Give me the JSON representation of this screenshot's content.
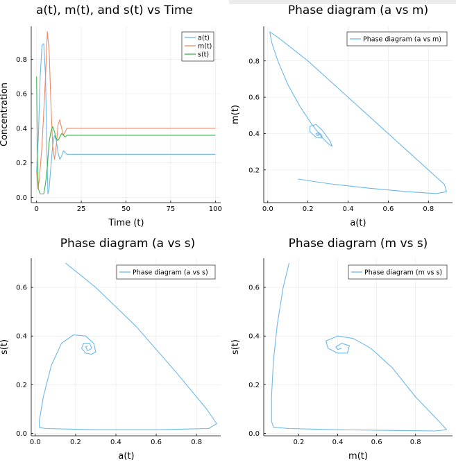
{
  "colors": {
    "a": "#6bb8ea",
    "m": "#f08a64",
    "s": "#3ab54a"
  },
  "chart_data": [
    {
      "type": "line",
      "title": "a(t), m(t), and s(t) vs Time",
      "xlabel": "Time (t)",
      "ylabel": "Concentration",
      "xlim": [
        -3,
        103
      ],
      "ylim": [
        -0.03,
        0.99
      ],
      "xticks": [
        0,
        25,
        50,
        75,
        100
      ],
      "yticks": [
        0.0,
        0.2,
        0.4,
        0.6,
        0.8
      ],
      "xtick_labels": [
        "0",
        "25",
        "50",
        "75",
        "100"
      ],
      "ytick_labels": [
        "0.0",
        "0.2",
        "0.4",
        "0.6",
        "0.8"
      ],
      "grid": true,
      "legend": "top-right",
      "series": [
        {
          "name": "a(t)",
          "color": "#6bb8ea",
          "points": [
            [
              0,
              0.15
            ],
            [
              1,
              0.35
            ],
            [
              2,
              0.7
            ],
            [
              3,
              0.88
            ],
            [
              4,
              0.89
            ],
            [
              5,
              0.7
            ],
            [
              5.7,
              0.3
            ],
            [
              6.3,
              0.02
            ],
            [
              7,
              0.05
            ],
            [
              8,
              0.18
            ],
            [
              9,
              0.3
            ],
            [
              10,
              0.36
            ],
            [
              11,
              0.33
            ],
            [
              12,
              0.26
            ],
            [
              13,
              0.22
            ],
            [
              14,
              0.24
            ],
            [
              15,
              0.27
            ],
            [
              16,
              0.26
            ],
            [
              17,
              0.25
            ],
            [
              18,
              0.25
            ],
            [
              25,
              0.25
            ],
            [
              100,
              0.25
            ]
          ]
        },
        {
          "name": "m(t)",
          "color": "#f08a64",
          "points": [
            [
              0,
              0.15
            ],
            [
              0.7,
              0.05
            ],
            [
              1.5,
              0.1
            ],
            [
              3,
              0.3
            ],
            [
              5,
              0.7
            ],
            [
              6,
              0.96
            ],
            [
              7,
              0.85
            ],
            [
              8,
              0.55
            ],
            [
              9,
              0.3
            ],
            [
              10,
              0.22
            ],
            [
              11,
              0.3
            ],
            [
              12,
              0.42
            ],
            [
              13,
              0.45
            ],
            [
              14,
              0.4
            ],
            [
              15,
              0.36
            ],
            [
              16,
              0.38
            ],
            [
              17,
              0.4
            ],
            [
              18,
              0.4
            ],
            [
              25,
              0.4
            ],
            [
              100,
              0.4
            ]
          ]
        },
        {
          "name": "s(t)",
          "color": "#3ab54a",
          "points": [
            [
              0,
              0.7
            ],
            [
              0.5,
              0.2
            ],
            [
              1,
              0.05
            ],
            [
              2,
              0.02
            ],
            [
              3,
              0.02
            ],
            [
              4,
              0.02
            ],
            [
              5,
              0.08
            ],
            [
              6,
              0.18
            ],
            [
              7,
              0.32
            ],
            [
              8,
              0.38
            ],
            [
              9,
              0.41
            ],
            [
              10,
              0.38
            ],
            [
              11,
              0.34
            ],
            [
              12,
              0.33
            ],
            [
              13,
              0.35
            ],
            [
              14,
              0.37
            ],
            [
              15,
              0.36
            ],
            [
              16,
              0.35
            ],
            [
              17,
              0.36
            ],
            [
              18,
              0.36
            ],
            [
              25,
              0.36
            ],
            [
              100,
              0.36
            ]
          ]
        }
      ]
    },
    {
      "type": "line",
      "title": "Phase diagram (a vs m)",
      "xlabel": "a(t)",
      "ylabel": "m(t)",
      "xlim": [
        -0.02,
        0.92
      ],
      "ylim": [
        0.02,
        0.99
      ],
      "xticks": [
        0.0,
        0.2,
        0.4,
        0.6,
        0.8
      ],
      "yticks": [
        0.2,
        0.4,
        0.6,
        0.8
      ],
      "xtick_labels": [
        "0.0",
        "0.2",
        "0.4",
        "0.6",
        "0.8"
      ],
      "ytick_labels": [
        "0.2",
        "0.4",
        "0.6",
        "0.8"
      ],
      "grid": true,
      "legend": "top-right",
      "series": [
        {
          "name": "Phase diagram (a vs m)",
          "color": "#6bb8ea",
          "points": [
            [
              0.15,
              0.15
            ],
            [
              0.3,
              0.125
            ],
            [
              0.5,
              0.1
            ],
            [
              0.7,
              0.08
            ],
            [
              0.84,
              0.07
            ],
            [
              0.89,
              0.08
            ],
            [
              0.88,
              0.12
            ],
            [
              0.7,
              0.3
            ],
            [
              0.45,
              0.55
            ],
            [
              0.2,
              0.8
            ],
            [
              0.05,
              0.93
            ],
            [
              0.01,
              0.96
            ],
            [
              0.02,
              0.9
            ],
            [
              0.05,
              0.8
            ],
            [
              0.1,
              0.67
            ],
            [
              0.16,
              0.55
            ],
            [
              0.22,
              0.45
            ],
            [
              0.27,
              0.38
            ],
            [
              0.3,
              0.345
            ],
            [
              0.32,
              0.33
            ],
            [
              0.31,
              0.36
            ],
            [
              0.27,
              0.42
            ],
            [
              0.24,
              0.45
            ],
            [
              0.21,
              0.44
            ],
            [
              0.21,
              0.41
            ],
            [
              0.24,
              0.38
            ],
            [
              0.27,
              0.375
            ],
            [
              0.27,
              0.39
            ],
            [
              0.255,
              0.405
            ],
            [
              0.24,
              0.4
            ],
            [
              0.245,
              0.39
            ],
            [
              0.255,
              0.39
            ],
            [
              0.25,
              0.4
            ]
          ]
        }
      ]
    },
    {
      "type": "line",
      "title": "Phase diagram (a vs s)",
      "xlabel": "a(t)",
      "ylabel": "s(t)",
      "xlim": [
        -0.02,
        0.92
      ],
      "ylim": [
        -0.01,
        0.72
      ],
      "xticks": [
        0.0,
        0.2,
        0.4,
        0.6,
        0.8
      ],
      "yticks": [
        0.0,
        0.2,
        0.4,
        0.6
      ],
      "xtick_labels": [
        "0.0",
        "0.2",
        "0.4",
        "0.6",
        "0.8"
      ],
      "ytick_labels": [
        "0.0",
        "0.2",
        "0.4",
        "0.6"
      ],
      "grid": true,
      "legend": "top-right",
      "series": [
        {
          "name": "Phase diagram (a vs s)",
          "color": "#6bb8ea",
          "points": [
            [
              0.15,
              0.7
            ],
            [
              0.3,
              0.6
            ],
            [
              0.5,
              0.44
            ],
            [
              0.7,
              0.25
            ],
            [
              0.85,
              0.1
            ],
            [
              0.9,
              0.04
            ],
            [
              0.86,
              0.02
            ],
            [
              0.6,
              0.015
            ],
            [
              0.3,
              0.015
            ],
            [
              0.05,
              0.02
            ],
            [
              0.02,
              0.025
            ],
            [
              0.02,
              0.05
            ],
            [
              0.04,
              0.15
            ],
            [
              0.08,
              0.28
            ],
            [
              0.13,
              0.37
            ],
            [
              0.19,
              0.405
            ],
            [
              0.25,
              0.4
            ],
            [
              0.29,
              0.37
            ],
            [
              0.3,
              0.335
            ],
            [
              0.28,
              0.325
            ],
            [
              0.25,
              0.33
            ],
            [
              0.23,
              0.35
            ],
            [
              0.24,
              0.37
            ],
            [
              0.27,
              0.37
            ],
            [
              0.28,
              0.35
            ],
            [
              0.26,
              0.34
            ],
            [
              0.25,
              0.355
            ],
            [
              0.26,
              0.36
            ]
          ]
        }
      ]
    },
    {
      "type": "line",
      "title": "Phase diagram (m vs s)",
      "xlabel": "m(t)",
      "ylabel": "s(t)",
      "xlim": [
        0.02,
        0.99
      ],
      "ylim": [
        -0.01,
        0.72
      ],
      "xticks": [
        0.2,
        0.4,
        0.6,
        0.8
      ],
      "yticks": [
        0.0,
        0.2,
        0.4,
        0.6
      ],
      "xtick_labels": [
        "0.2",
        "0.4",
        "0.6",
        "0.8"
      ],
      "ytick_labels": [
        "0.0",
        "0.2",
        "0.4",
        "0.6"
      ],
      "grid": true,
      "legend": "top-right",
      "series": [
        {
          "name": "Phase diagram (m vs s)",
          "color": "#6bb8ea",
          "points": [
            [
              0.15,
              0.7
            ],
            [
              0.12,
              0.6
            ],
            [
              0.09,
              0.45
            ],
            [
              0.07,
              0.3
            ],
            [
              0.06,
              0.15
            ],
            [
              0.06,
              0.05
            ],
            [
              0.07,
              0.025
            ],
            [
              0.15,
              0.02
            ],
            [
              0.4,
              0.015
            ],
            [
              0.7,
              0.012
            ],
            [
              0.9,
              0.01
            ],
            [
              0.96,
              0.015
            ],
            [
              0.92,
              0.05
            ],
            [
              0.8,
              0.15
            ],
            [
              0.68,
              0.27
            ],
            [
              0.57,
              0.35
            ],
            [
              0.48,
              0.39
            ],
            [
              0.4,
              0.4
            ],
            [
              0.34,
              0.38
            ],
            [
              0.35,
              0.35
            ],
            [
              0.4,
              0.33
            ],
            [
              0.45,
              0.33
            ],
            [
              0.46,
              0.36
            ],
            [
              0.42,
              0.37
            ],
            [
              0.39,
              0.355
            ],
            [
              0.4,
              0.345
            ],
            [
              0.42,
              0.35
            ]
          ]
        }
      ]
    }
  ]
}
